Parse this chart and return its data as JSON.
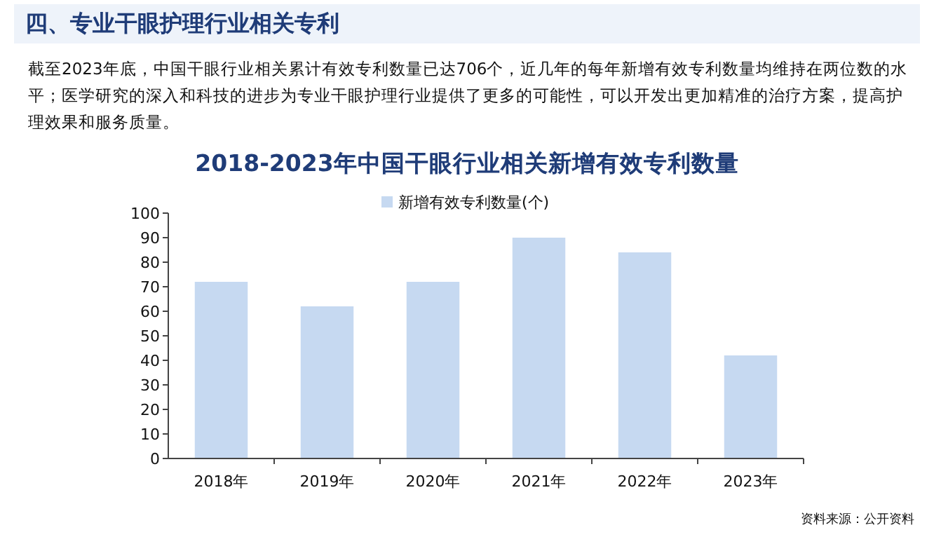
{
  "chart_data": {
    "type": "bar",
    "title": "2018-2023年中国干眼行业相关新增有效专利数量",
    "categories": [
      "2018年",
      "2019年",
      "2020年",
      "2021年",
      "2022年",
      "2023年"
    ],
    "series": [
      {
        "name": "新增有效专利数量(个)",
        "color": "#c6d9f1",
        "values": [
          72,
          62,
          72,
          90,
          84,
          42
        ]
      }
    ],
    "ylim": [
      0,
      100
    ],
    "yticks": [
      0,
      10,
      20,
      30,
      40,
      50,
      60,
      70,
      80,
      90,
      100
    ],
    "grid": false,
    "legend": "top",
    "annotations": [
      "四、专业干眼护理行业相关专利",
      "截至2023年底，中国干眼行业相关累计有效专利数量已达706个，近几年的每年新增有效专利数量均维持在两位数的水平；医学研究的深入和科技的进步为专业干眼护理行业提供了更多的可能性，可以开发出更加精准的治疗方案，提高护理效果和服务质量。",
      "资料来源：公开资料"
    ]
  }
}
